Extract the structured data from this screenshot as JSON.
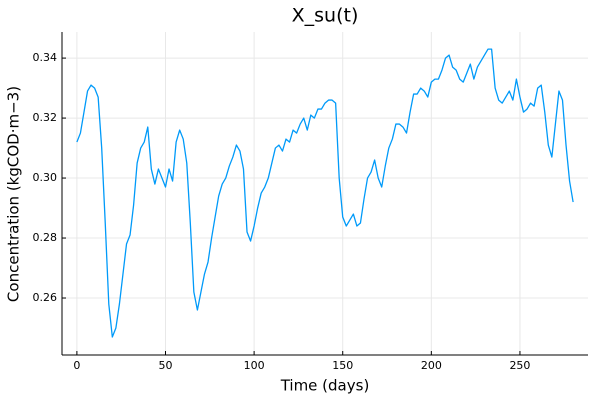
{
  "chart_data": {
    "type": "line",
    "title": "X_su(t)",
    "x_label": "Time (days)",
    "y_label": "Concentration (kgCOD·m−3)",
    "x": [
      0,
      2,
      4,
      6,
      8,
      10,
      12,
      14,
      16,
      18,
      20,
      22,
      24,
      26,
      28,
      30,
      32,
      34,
      36,
      38,
      40,
      42,
      44,
      46,
      48,
      50,
      52,
      54,
      56,
      58,
      60,
      62,
      64,
      66,
      68,
      70,
      72,
      74,
      76,
      78,
      80,
      82,
      84,
      86,
      88,
      90,
      92,
      94,
      96,
      98,
      100,
      102,
      104,
      106,
      108,
      110,
      112,
      114,
      116,
      118,
      120,
      122,
      124,
      126,
      128,
      130,
      132,
      134,
      136,
      138,
      140,
      142,
      144,
      146,
      148,
      150,
      152,
      154,
      156,
      158,
      160,
      162,
      164,
      166,
      168,
      170,
      172,
      174,
      176,
      178,
      180,
      182,
      184,
      186,
      188,
      190,
      192,
      194,
      196,
      198,
      200,
      202,
      204,
      206,
      208,
      210,
      212,
      214,
      216,
      218,
      220,
      222,
      224,
      226,
      228,
      230,
      232,
      234,
      236,
      238,
      240,
      242,
      244,
      246,
      248,
      250,
      252,
      254,
      256,
      258,
      260,
      262,
      264,
      266,
      268,
      270,
      272,
      274,
      276,
      278,
      280
    ],
    "series": [
      {
        "color": "#009af9",
        "values": [
          0.312,
          0.315,
          0.322,
          0.329,
          0.331,
          0.33,
          0.327,
          0.31,
          0.285,
          0.258,
          0.247,
          0.25,
          0.258,
          0.268,
          0.278,
          0.281,
          0.291,
          0.305,
          0.31,
          0.312,
          0.317,
          0.303,
          0.298,
          0.303,
          0.3,
          0.297,
          0.303,
          0.299,
          0.312,
          0.316,
          0.313,
          0.305,
          0.285,
          0.262,
          0.256,
          0.262,
          0.268,
          0.272,
          0.28,
          0.287,
          0.294,
          0.298,
          0.3,
          0.304,
          0.307,
          0.311,
          0.309,
          0.303,
          0.282,
          0.279,
          0.284,
          0.29,
          0.295,
          0.297,
          0.3,
          0.305,
          0.31,
          0.311,
          0.309,
          0.313,
          0.312,
          0.316,
          0.315,
          0.318,
          0.32,
          0.316,
          0.321,
          0.32,
          0.323,
          0.323,
          0.325,
          0.326,
          0.326,
          0.325,
          0.3,
          0.287,
          0.284,
          0.286,
          0.288,
          0.284,
          0.285,
          0.293,
          0.3,
          0.302,
          0.306,
          0.3,
          0.297,
          0.304,
          0.31,
          0.313,
          0.318,
          0.318,
          0.317,
          0.315,
          0.322,
          0.328,
          0.328,
          0.33,
          0.329,
          0.327,
          0.332,
          0.333,
          0.333,
          0.336,
          0.34,
          0.341,
          0.337,
          0.336,
          0.333,
          0.332,
          0.335,
          0.338,
          0.333,
          0.337,
          0.339,
          0.341,
          0.343,
          0.343,
          0.33,
          0.326,
          0.325,
          0.327,
          0.329,
          0.326,
          0.333,
          0.327,
          0.322,
          0.323,
          0.325,
          0.324,
          0.33,
          0.331,
          0.322,
          0.311,
          0.307,
          0.318,
          0.329,
          0.326,
          0.311,
          0.299,
          0.292
        ]
      }
    ],
    "xlim": [
      -8.4,
      288.4
    ],
    "xticks": [
      0,
      50,
      100,
      150,
      200,
      250
    ],
    "ylim": [
      0.241,
      0.3487
    ],
    "yticks": [
      0.26,
      0.28,
      {
        "value": 0.3,
        "label": "0.30"
      },
      0.32,
      0.34
    ],
    "grid": true
  }
}
